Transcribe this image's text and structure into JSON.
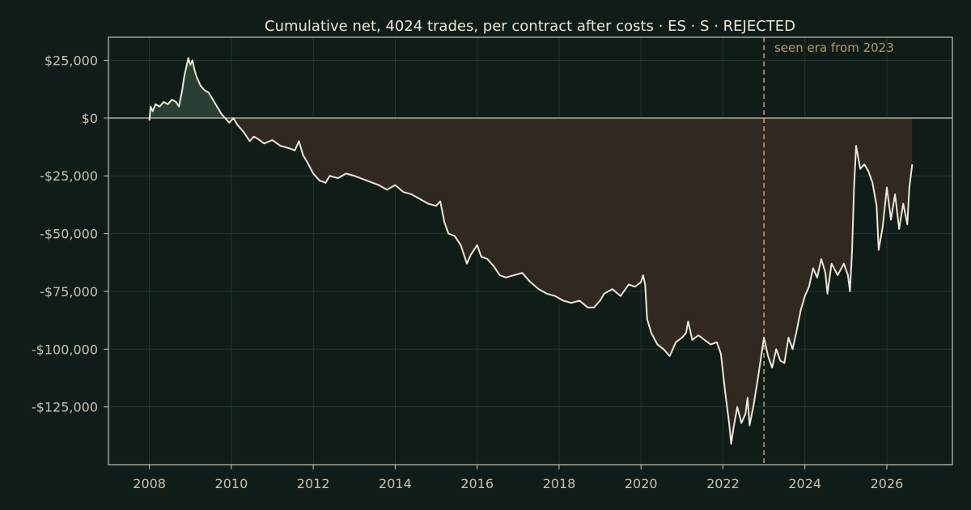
{
  "chart_data": {
    "type": "area",
    "title": "Cumulative net, 4024 trades, per contract after costs  ·  ES · S · REJECTED",
    "xlabel": "",
    "ylabel": "",
    "xlim": [
      2007.0,
      2027.6
    ],
    "ylim": [
      -150000,
      35000
    ],
    "x_ticks": [
      {
        "value": 2008,
        "label": "2008"
      },
      {
        "value": 2010,
        "label": "2010"
      },
      {
        "value": 2012,
        "label": "2012"
      },
      {
        "value": 2014,
        "label": "2014"
      },
      {
        "value": 2016,
        "label": "2016"
      },
      {
        "value": 2018,
        "label": "2018"
      },
      {
        "value": 2020,
        "label": "2020"
      },
      {
        "value": 2022,
        "label": "2022"
      },
      {
        "value": 2024,
        "label": "2024"
      },
      {
        "value": 2026,
        "label": "2026"
      }
    ],
    "y_ticks": [
      {
        "value": 25000,
        "label": "$25,000"
      },
      {
        "value": 0,
        "label": "$0"
      },
      {
        "value": -25000,
        "label": "-$25,000"
      },
      {
        "value": -50000,
        "label": "-$50,000"
      },
      {
        "value": -75000,
        "label": "-$75,000"
      },
      {
        "value": -100000,
        "label": "-$100,000"
      },
      {
        "value": -125000,
        "label": "-$125,000"
      }
    ],
    "grid": true,
    "reference_line": {
      "value": 0
    },
    "annotation": {
      "x": 2023.0,
      "label": "seen era from 2023"
    },
    "colors": {
      "background": "#0f1c17",
      "line": "#ece6d6",
      "positive_fill": "#2a3f34",
      "negative_fill": "#302823",
      "grid": "#26352d",
      "axis": "#c9c3b1",
      "annotation": "#c8a76a"
    },
    "series": [
      {
        "x": [
          2008.0,
          2008.03,
          2008.08,
          2008.15,
          2008.25,
          2008.35,
          2008.45,
          2008.55,
          2008.65,
          2008.72,
          2008.8,
          2008.85,
          2008.9,
          2008.95,
          2009.0,
          2009.05,
          2009.1,
          2009.15,
          2009.2,
          2009.25,
          2009.35,
          2009.45,
          2009.55,
          2009.65,
          2009.75,
          2009.85,
          2009.95,
          2010.05,
          2010.15,
          2010.3,
          2010.45,
          2010.55,
          2010.65,
          2010.8,
          2011.0,
          2011.2,
          2011.4,
          2011.55,
          2011.65,
          2011.75,
          2011.85,
          2012.0,
          2012.15,
          2012.3,
          2012.4,
          2012.6,
          2012.8,
          2013.0,
          2013.3,
          2013.6,
          2013.8,
          2014.0,
          2014.2,
          2014.4,
          2014.6,
          2014.8,
          2015.0,
          2015.1,
          2015.2,
          2015.3,
          2015.45,
          2015.6,
          2015.75,
          2015.85,
          2016.0,
          2016.1,
          2016.25,
          2016.4,
          2016.55,
          2016.7,
          2016.9,
          2017.1,
          2017.3,
          2017.5,
          2017.7,
          2017.9,
          2018.1,
          2018.3,
          2018.5,
          2018.7,
          2018.85,
          2019.0,
          2019.1,
          2019.3,
          2019.5,
          2019.7,
          2019.85,
          2020.0,
          2020.05,
          2020.1,
          2020.15,
          2020.25,
          2020.4,
          2020.55,
          2020.7,
          2020.85,
          2021.0,
          2021.1,
          2021.15,
          2021.25,
          2021.4,
          2021.55,
          2021.7,
          2021.85,
          2021.95,
          2022.0,
          2022.05,
          2022.1,
          2022.15,
          2022.2,
          2022.25,
          2022.35,
          2022.45,
          2022.55,
          2022.6,
          2022.65,
          2022.75,
          2022.85,
          2022.95,
          2023.0,
          2023.1,
          2023.2,
          2023.3,
          2023.4,
          2023.5,
          2023.6,
          2023.7,
          2023.8,
          2023.9,
          2024.0,
          2024.1,
          2024.2,
          2024.3,
          2024.4,
          2024.5,
          2024.55,
          2024.65,
          2024.8,
          2024.95,
          2025.05,
          2025.1,
          2025.15,
          2025.2,
          2025.25,
          2025.35,
          2025.45,
          2025.55,
          2025.65,
          2025.75,
          2025.8,
          2025.9,
          2026.0,
          2026.1,
          2026.2,
          2026.3,
          2026.4,
          2026.5,
          2026.55,
          2026.62
        ],
        "y": [
          -1000,
          5000,
          3000,
          6000,
          5000,
          7000,
          6000,
          8000,
          7000,
          5000,
          12000,
          18000,
          22000,
          26000,
          23000,
          25000,
          21000,
          18000,
          16000,
          14000,
          12000,
          11000,
          8000,
          5000,
          2000,
          0,
          -2000,
          0,
          -3000,
          -6000,
          -10000,
          -8000,
          -9000,
          -11000,
          -9500,
          -12000,
          -13000,
          -14000,
          -10000,
          -16000,
          -19000,
          -24000,
          -27000,
          -28000,
          -25000,
          -26000,
          -24000,
          -25000,
          -27000,
          -29000,
          -31000,
          -29000,
          -32000,
          -33000,
          -35000,
          -37000,
          -38000,
          -36000,
          -45000,
          -50000,
          -51000,
          -55000,
          -63000,
          -59000,
          -55000,
          -60000,
          -61000,
          -64000,
          -68000,
          -69000,
          -68000,
          -67000,
          -71000,
          -74000,
          -76000,
          -77000,
          -79000,
          -80000,
          -79000,
          -82000,
          -82000,
          -79000,
          -76000,
          -74000,
          -77000,
          -72000,
          -73000,
          -71000,
          -68000,
          -72000,
          -87000,
          -93000,
          -98000,
          -100000,
          -103000,
          -97000,
          -95000,
          -93000,
          -88000,
          -96000,
          -94000,
          -96000,
          -98000,
          -97000,
          -102000,
          -110000,
          -118000,
          -125000,
          -132000,
          -141000,
          -135000,
          -125000,
          -132000,
          -128000,
          -121000,
          -133000,
          -124000,
          -113000,
          -101000,
          -95000,
          -103000,
          -108000,
          -100000,
          -105000,
          -106000,
          -95000,
          -100000,
          -92000,
          -83000,
          -77000,
          -73000,
          -65000,
          -69000,
          -61000,
          -67000,
          -76000,
          -63000,
          -68000,
          -63000,
          -68000,
          -75000,
          -58000,
          -30000,
          -12000,
          -22000,
          -20000,
          -23000,
          -28000,
          -38000,
          -57000,
          -47000,
          -30000,
          -44000,
          -33000,
          -48000,
          -37000,
          -46000,
          -30000,
          -20000
        ]
      }
    ]
  }
}
